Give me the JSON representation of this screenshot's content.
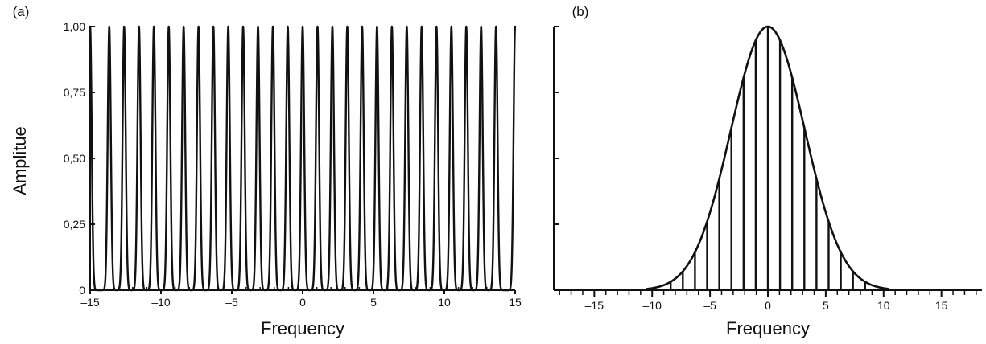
{
  "chart_data": [
    {
      "panel_label": "(a)",
      "type": "line",
      "xlabel": "Frequency",
      "ylabel": "Amplitue",
      "xlim": [
        -15,
        15
      ],
      "ylim": [
        0,
        1
      ],
      "x_ticks": [
        -15,
        -10,
        -5,
        0,
        5,
        10,
        15
      ],
      "x_tick_labels": [
        "–15",
        "–10",
        "–5",
        "0",
        "5",
        "10",
        "15"
      ],
      "y_ticks": [
        0,
        0.25,
        0.5,
        0.75,
        1
      ],
      "y_tick_labels": [
        "0",
        "0,25",
        "0,50",
        "0,75",
        "1,00"
      ],
      "series": [
        {
          "peak_spacing": 1.05,
          "peak_height": 1,
          "peak_positions": [
            -13.65,
            -12.6,
            -11.55,
            -10.5,
            -9.45,
            -8.4,
            -7.35,
            -6.3,
            -5.25,
            -4.2,
            -3.15,
            -2.1,
            -1.05,
            0,
            1.05,
            2.1,
            3.15,
            4.2,
            5.25,
            6.3,
            7.35,
            8.4,
            9.45,
            10.5,
            11.55,
            12.6,
            13.65
          ],
          "edge_values": {
            "-15": 1,
            "15": 1
          }
        }
      ]
    },
    {
      "panel_label": "(b)",
      "type": "line",
      "xlabel": "Frequency",
      "ylabel": "",
      "xlim": [
        -18.5,
        18.5
      ],
      "ylim": [
        0,
        1
      ],
      "x_ticks": [
        -15,
        -10,
        -5,
        0,
        5,
        10,
        15
      ],
      "x_tick_labels": [
        "–15",
        "–10",
        "–5",
        "0",
        "5",
        "10",
        "15"
      ],
      "y_ticks": [
        0.25,
        0.5,
        0.75,
        1
      ],
      "y_tick_labels": [
        "",
        "",
        "",
        ""
      ],
      "envelope": {
        "shape": "gaussian",
        "center": 0,
        "peak": 1,
        "sigma": 3.2
      },
      "series": [
        {
          "stem_positions": [
            -8.4,
            -7.35,
            -6.3,
            -5.25,
            -4.2,
            -3.15,
            -2.1,
            -1.05,
            0,
            1.05,
            2.1,
            3.15,
            4.2,
            5.25,
            6.3,
            7.35,
            8.4
          ],
          "stem_heights": [
            0.03,
            0.07,
            0.15,
            0.26,
            0.42,
            0.62,
            0.81,
            0.95,
            1.0,
            0.95,
            0.81,
            0.62,
            0.42,
            0.26,
            0.15,
            0.07,
            0.03
          ]
        }
      ]
    }
  ]
}
